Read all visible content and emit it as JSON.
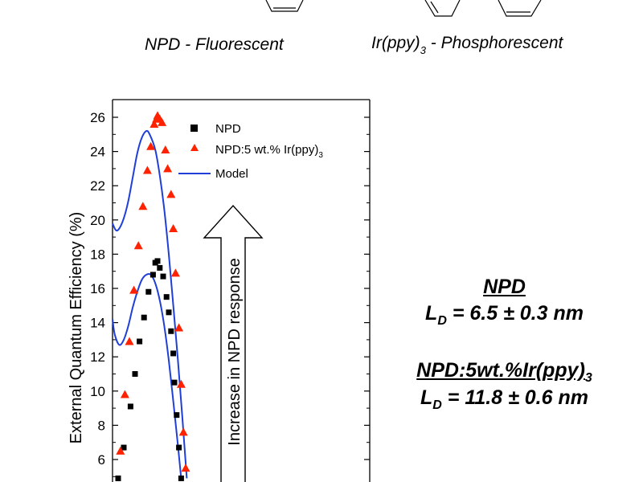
{
  "top_labels": {
    "left_main": "NPD - Fluorescent",
    "right_main": "Ir(ppy)",
    "right_sub": "3",
    "right_tail": " - Phosphorescent"
  },
  "results": {
    "npd_heading": "NPD",
    "npd_ld_main": "L",
    "npd_ld_sub": "D",
    "npd_ld_value": " = 6.5 ± 0.3 nm",
    "doped_heading_main": "NPD:5wt.%Ir(ppy)",
    "doped_heading_sub": "3",
    "doped_ld_main": "L",
    "doped_ld_sub": "D",
    "doped_ld_value": " = 11.8 ± 0.6 nm"
  },
  "arrow_text": "Increase in NPD response",
  "chart_data": {
    "type": "scatter",
    "ylabel": "External Quantum Efficiency (%)",
    "ylim": [
      4.8,
      26.7
    ],
    "yticks": [
      6,
      8,
      10,
      12,
      14,
      16,
      18,
      20,
      22,
      24,
      26
    ],
    "legend_position": "top-right",
    "colors": {
      "npd": "#000000",
      "doped": "#ff2200",
      "model": "#1f3fd9"
    },
    "series": [
      {
        "name": "NPD",
        "marker": "square",
        "points": [
          [
            0.25,
            4.9
          ],
          [
            0.5,
            6.7
          ],
          [
            0.8,
            9.1
          ],
          [
            1.0,
            11.0
          ],
          [
            1.2,
            12.9
          ],
          [
            1.4,
            14.3
          ],
          [
            1.6,
            15.8
          ],
          [
            1.8,
            16.8
          ],
          [
            1.9,
            17.5
          ],
          [
            2.0,
            17.6
          ],
          [
            2.1,
            17.2
          ],
          [
            2.25,
            16.7
          ],
          [
            2.4,
            15.5
          ],
          [
            2.5,
            14.6
          ],
          [
            2.6,
            13.5
          ],
          [
            2.7,
            12.2
          ],
          [
            2.75,
            10.5
          ],
          [
            2.85,
            8.6
          ],
          [
            2.95,
            6.7
          ],
          [
            3.05,
            4.9
          ]
        ]
      },
      {
        "name": "NPD:5 wt.% Ir(ppy)",
        "name_sub": "3",
        "marker": "triangle",
        "points": [
          [
            0.35,
            6.5
          ],
          [
            0.55,
            9.8
          ],
          [
            0.75,
            12.9
          ],
          [
            0.95,
            15.9
          ],
          [
            1.15,
            18.5
          ],
          [
            1.35,
            20.8
          ],
          [
            1.55,
            22.9
          ],
          [
            1.7,
            24.3
          ],
          [
            1.85,
            25.6
          ],
          [
            1.95,
            25.9
          ],
          [
            2.0,
            26.1
          ],
          [
            2.1,
            25.9
          ],
          [
            2.2,
            25.7
          ],
          [
            2.35,
            24.1
          ],
          [
            2.45,
            23.0
          ],
          [
            2.6,
            21.5
          ],
          [
            2.7,
            19.5
          ],
          [
            2.8,
            16.9
          ],
          [
            2.95,
            13.7
          ],
          [
            3.05,
            10.4
          ],
          [
            3.15,
            7.6
          ],
          [
            3.25,
            5.5
          ]
        ]
      },
      {
        "name": "Model",
        "type": "line",
        "curves": [
          [
            [
              0.0,
              14.2
            ],
            [
              0.1,
              13.3
            ],
            [
              0.3,
              12.7
            ],
            [
              0.5,
              13.0
            ],
            [
              0.7,
              13.8
            ],
            [
              0.9,
              14.9
            ],
            [
              1.1,
              15.8
            ],
            [
              1.3,
              16.5
            ],
            [
              1.5,
              16.8
            ],
            [
              1.7,
              16.8
            ],
            [
              1.9,
              16.3
            ],
            [
              2.1,
              15.3
            ],
            [
              2.3,
              13.8
            ],
            [
              2.5,
              11.8
            ],
            [
              2.7,
              9.4
            ],
            [
              2.9,
              6.9
            ],
            [
              3.05,
              4.9
            ]
          ],
          [
            [
              0.0,
              19.8
            ],
            [
              0.15,
              19.4
            ],
            [
              0.3,
              19.5
            ],
            [
              0.5,
              20.1
            ],
            [
              0.7,
              21.1
            ],
            [
              0.9,
              22.5
            ],
            [
              1.1,
              23.9
            ],
            [
              1.3,
              24.8
            ],
            [
              1.5,
              25.2
            ],
            [
              1.65,
              25.0
            ],
            [
              1.9,
              24.1
            ],
            [
              2.1,
              22.6
            ],
            [
              2.3,
              20.6
            ],
            [
              2.5,
              18.0
            ],
            [
              2.7,
              15.0
            ],
            [
              2.9,
              11.9
            ],
            [
              3.1,
              8.5
            ],
            [
              3.3,
              4.9
            ]
          ]
        ]
      }
    ]
  }
}
